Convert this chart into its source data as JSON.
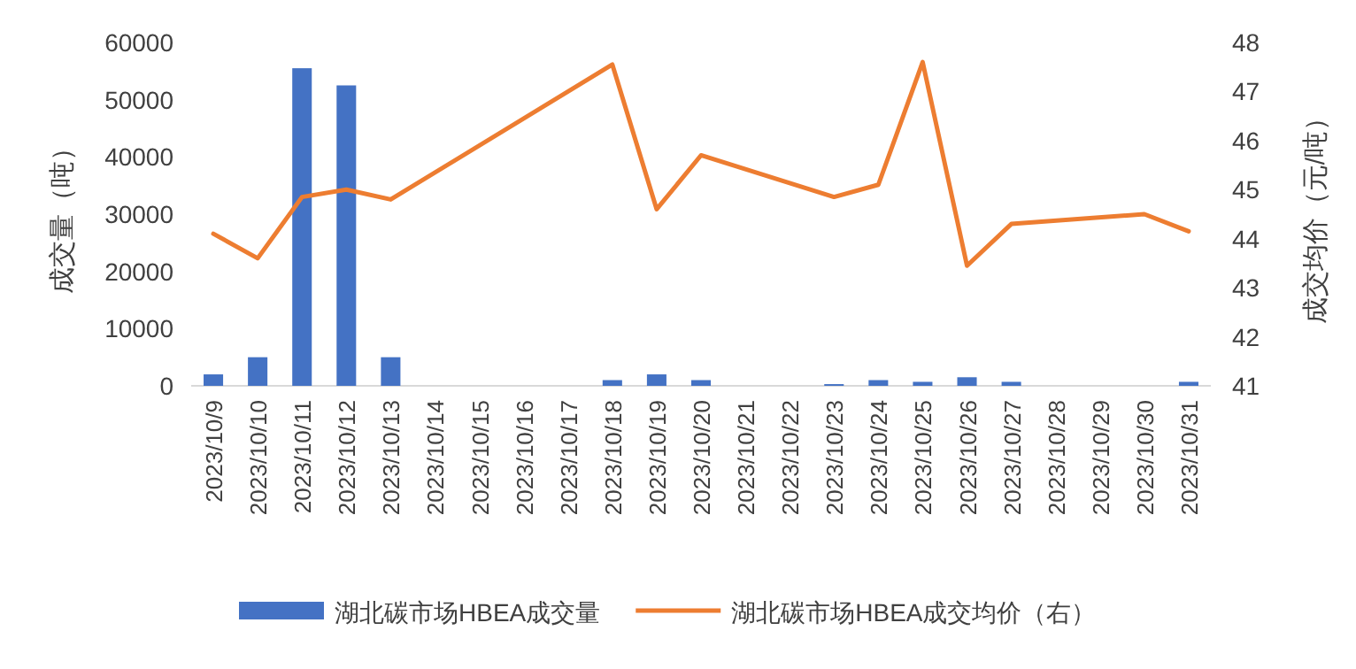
{
  "chart_data": {
    "type": "bar",
    "categories": [
      "2023/10/9",
      "2023/10/10",
      "2023/10/11",
      "2023/10/12",
      "2023/10/13",
      "2023/10/14",
      "2023/10/15",
      "2023/10/16",
      "2023/10/17",
      "2023/10/18",
      "2023/10/19",
      "2023/10/20",
      "2023/10/21",
      "2023/10/22",
      "2023/10/23",
      "2023/10/24",
      "2023/10/25",
      "2023/10/26",
      "2023/10/27",
      "2023/10/28",
      "2023/10/29",
      "2023/10/30",
      "2023/10/31"
    ],
    "ylabel": "成交量（吨）",
    "y2label": "成交均价（元/吨）",
    "ylim": [
      0,
      60000
    ],
    "yticks": [
      0,
      10000,
      20000,
      30000,
      40000,
      50000,
      60000
    ],
    "y2lim": [
      41,
      48
    ],
    "y2ticks": [
      41,
      42,
      43,
      44,
      45,
      46,
      47,
      48
    ],
    "legend": "bottom",
    "grid": false,
    "series": [
      {
        "name": "湖北碳市场HBEA成交量",
        "color": "#4472c4",
        "values": [
          2000,
          5000,
          55500,
          52500,
          5000,
          null,
          null,
          null,
          null,
          1000,
          2000,
          1000,
          null,
          null,
          300,
          1000,
          700,
          1500,
          700,
          null,
          null,
          null,
          700
        ]
      },
      {
        "name": "湖北碳市场HBEA成交均价（右）",
        "type": "line",
        "axis": "y2",
        "color": "#ed7d31",
        "values": [
          44.1,
          43.6,
          44.85,
          45.0,
          44.8,
          null,
          null,
          null,
          null,
          47.55,
          44.6,
          45.7,
          null,
          null,
          44.85,
          45.1,
          47.6,
          43.45,
          44.3,
          null,
          null,
          44.5,
          44.15
        ]
      }
    ]
  }
}
